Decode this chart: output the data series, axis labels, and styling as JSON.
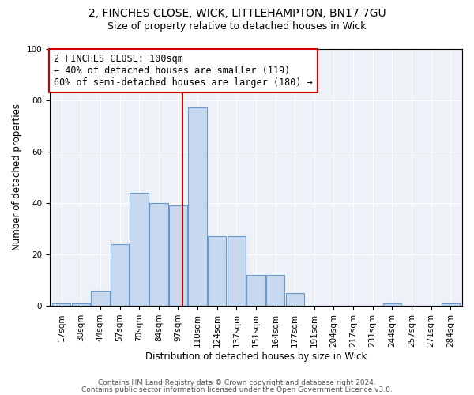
{
  "title1": "2, FINCHES CLOSE, WICK, LITTLEHAMPTON, BN17 7GU",
  "title2": "Size of property relative to detached houses in Wick",
  "xlabel": "Distribution of detached houses by size in Wick",
  "ylabel": "Number of detached properties",
  "bar_labels": [
    "17sqm",
    "30sqm",
    "44sqm",
    "57sqm",
    "70sqm",
    "84sqm",
    "97sqm",
    "110sqm",
    "124sqm",
    "137sqm",
    "151sqm",
    "164sqm",
    "177sqm",
    "191sqm",
    "204sqm",
    "217sqm",
    "231sqm",
    "244sqm",
    "257sqm",
    "271sqm",
    "284sqm"
  ],
  "bar_heights": [
    1,
    1,
    6,
    24,
    44,
    40,
    39,
    77,
    27,
    27,
    12,
    12,
    5,
    0,
    0,
    0,
    0,
    1,
    0,
    0,
    1
  ],
  "bar_color": "#c8d8ee",
  "bar_edge_color": "#6699cc",
  "grid_color": "#c0cce0",
  "vline_color": "#cc0000",
  "annotation_text": "2 FINCHES CLOSE: 100sqm\n← 40% of detached houses are smaller (119)\n60% of semi-detached houses are larger (180) →",
  "annotation_box_color": "#ffffff",
  "annotation_edge_color": "#cc0000",
  "footer1": "Contains HM Land Registry data © Crown copyright and database right 2024.",
  "footer2": "Contains public sector information licensed under the Open Government Licence v3.0.",
  "ylim": [
    0,
    100
  ],
  "title1_fontsize": 10,
  "title2_fontsize": 9,
  "annotation_fontsize": 8.5,
  "xlabel_fontsize": 8.5,
  "ylabel_fontsize": 8.5,
  "tick_fontsize": 7.5,
  "footer_fontsize": 6.5
}
